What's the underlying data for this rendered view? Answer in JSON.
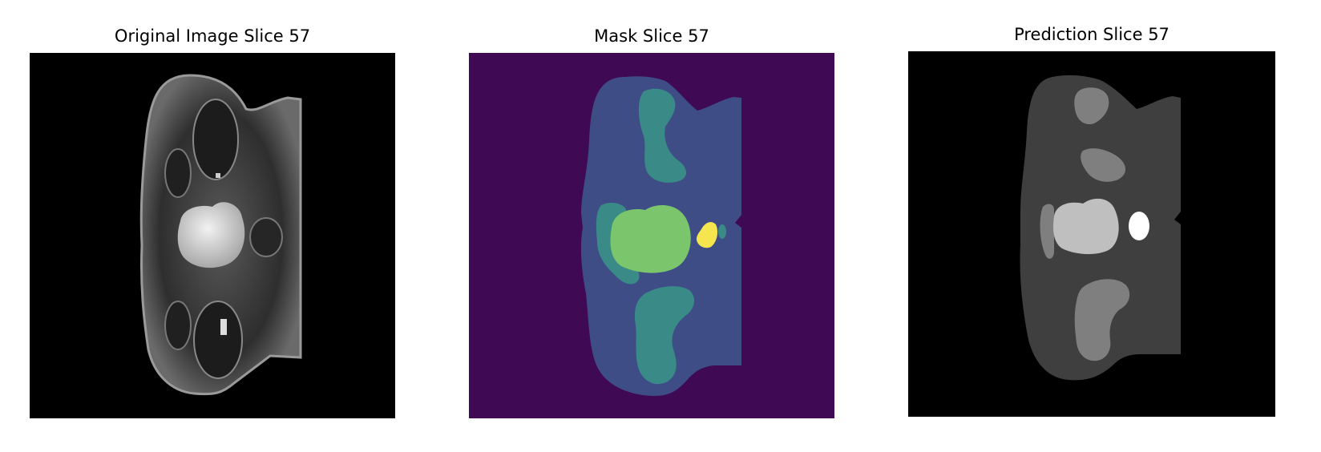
{
  "panels": [
    {
      "id": "original",
      "title": "Original Image Slice 57",
      "content": "grayscale-mri-slice",
      "colors": {
        "background": "#000000",
        "body": "#3c3c3c",
        "bright_region": "#d8d8d8"
      }
    },
    {
      "id": "mask",
      "title": "Mask Slice 57",
      "content": "segmentation-mask-viridis",
      "colors": {
        "background": "#3f0a53",
        "body": "#3f4d87",
        "region_teal": "#3a8a87",
        "region_green": "#7bc56c",
        "region_yellow": "#f5e54f"
      }
    },
    {
      "id": "prediction",
      "title": "Prediction Slice 57",
      "content": "segmentation-prediction-grayscale",
      "colors": {
        "background": "#000000",
        "body": "#3f3f3f",
        "region_mid": "#7f7f7f",
        "region_light": "#bfbfbf",
        "region_white": "#ffffff"
      }
    }
  ]
}
